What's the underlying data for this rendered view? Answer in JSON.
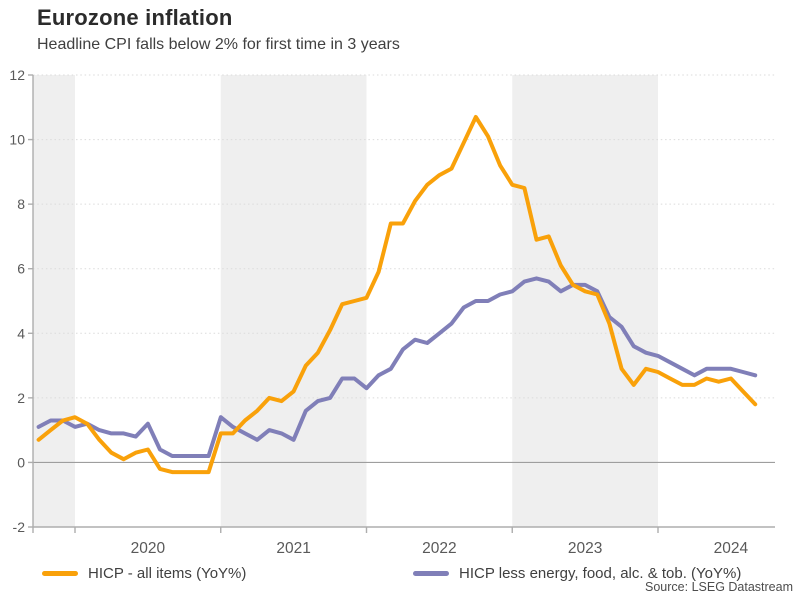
{
  "header": {
    "title": "Eurozone inflation",
    "subtitle": "Headline CPI falls below 2% for first time in 3 years"
  },
  "footer": {
    "source": "Source: LSEG Datastream"
  },
  "colors": {
    "headline_orange": "#F9A10A",
    "core_purple": "#807FB8",
    "year_band": "#EFEFEF",
    "gridline": "#DBDBDB",
    "zero_line": "#9E9E9E",
    "axis": "#ADADAD",
    "tick_text": "#595959",
    "title_text": "#2B2B2B",
    "subtitle_text": "#404040",
    "legend_text": "#404040",
    "source_text": "#4D4D4D"
  },
  "chart_data": {
    "type": "line",
    "title": "Eurozone inflation",
    "subtitle": "Headline CPI falls below 2% for first time in 3 years",
    "x_unit": "month",
    "x_start": "2019-10",
    "x_end": "2024-09",
    "x_tick_years": [
      2020,
      2021,
      2022,
      2023,
      2024
    ],
    "x_tick_labels": [
      "2020",
      "2021",
      "2022",
      "2023",
      "2024"
    ],
    "ylim": [
      -2,
      12
    ],
    "y_ticks": [
      -2,
      0,
      2,
      4,
      6,
      8,
      10,
      12
    ],
    "grid": "horizontal-dotted",
    "zero_baseline": true,
    "shaded_band_years": [
      "2019",
      "2021",
      "2023"
    ],
    "legend_position": "bottom",
    "series": [
      {
        "name": "HICP - all items (YoY%)",
        "color": "#F9A10A",
        "values": [
          0.7,
          1.0,
          1.3,
          1.4,
          1.2,
          0.7,
          0.3,
          0.1,
          0.3,
          0.4,
          -0.2,
          -0.3,
          -0.3,
          -0.3,
          -0.3,
          0.9,
          0.9,
          1.3,
          1.6,
          2.0,
          1.9,
          2.2,
          3.0,
          3.4,
          4.1,
          4.9,
          5.0,
          5.1,
          5.9,
          7.4,
          7.4,
          8.1,
          8.6,
          8.9,
          9.1,
          9.9,
          10.7,
          10.1,
          9.2,
          8.6,
          8.5,
          6.9,
          7.0,
          6.1,
          5.5,
          5.3,
          5.2,
          4.3,
          2.9,
          2.4,
          2.9,
          2.8,
          2.6,
          2.4,
          2.4,
          2.6,
          2.5,
          2.6,
          2.2,
          1.8
        ]
      },
      {
        "name": "HICP less energy, food, alc. & tob. (YoY%)",
        "color": "#807FB8",
        "values": [
          1.1,
          1.3,
          1.3,
          1.1,
          1.2,
          1.0,
          0.9,
          0.9,
          0.8,
          1.2,
          0.4,
          0.2,
          0.2,
          0.2,
          0.2,
          1.4,
          1.1,
          0.9,
          0.7,
          1.0,
          0.9,
          0.7,
          1.6,
          1.9,
          2.0,
          2.6,
          2.6,
          2.3,
          2.7,
          2.9,
          3.5,
          3.8,
          3.7,
          4.0,
          4.3,
          4.8,
          5.0,
          5.0,
          5.2,
          5.3,
          5.6,
          5.7,
          5.6,
          5.3,
          5.5,
          5.5,
          5.3,
          4.5,
          4.2,
          3.6,
          3.4,
          3.3,
          3.1,
          2.9,
          2.7,
          2.9,
          2.9,
          2.9,
          2.8,
          2.7
        ]
      }
    ]
  }
}
